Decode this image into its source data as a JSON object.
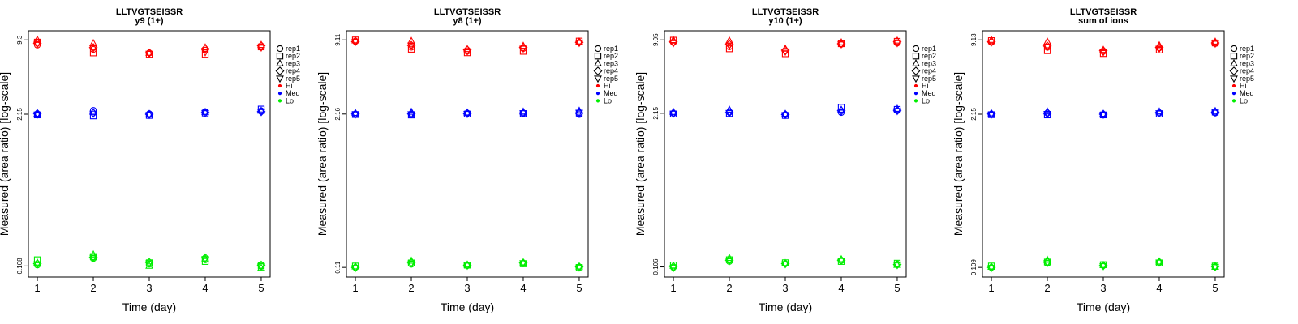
{
  "chart_data": [
    {
      "type": "scatter",
      "title": "LLTVGTSEISSR",
      "subtitle": "y9 (1+)",
      "xlabel": "Time (day)",
      "ylabel": "Measured (area ratio) [log-scale]",
      "y_scale": "log",
      "x_ticks": [
        "1",
        "2",
        "3",
        "4",
        "5"
      ],
      "y_tick_labels": [
        "0.108",
        "2.15",
        "9.3"
      ],
      "grid": false,
      "legend_position": "right",
      "legend": [
        "rep1",
        "rep2",
        "rep3",
        "rep4",
        "rep5",
        "Hi",
        "Med",
        "Lo"
      ],
      "series": [
        {
          "name": "Hi",
          "color": "#ff0000",
          "x": [
            1,
            2,
            3,
            4,
            5
          ],
          "rep1": [
            8.4,
            7.7,
            7.2,
            7.6,
            8.1
          ],
          "rep2": [
            8.9,
            7.2,
            7.0,
            7.0,
            8.1
          ],
          "rep3": [
            9.3,
            8.7,
            7.2,
            8.0,
            8.4
          ],
          "rep4": [
            8.7,
            8.0,
            7.2,
            7.8,
            8.3
          ],
          "rep5": [
            8.6,
            7.9,
            7.1,
            7.3,
            8.0
          ]
        },
        {
          "name": "Med",
          "color": "#0000ff",
          "x": [
            1,
            2,
            3,
            4,
            5
          ],
          "rep1": [
            2.15,
            2.32,
            2.17,
            2.26,
            2.3
          ],
          "rep2": [
            2.12,
            2.08,
            2.1,
            2.2,
            2.38
          ],
          "rep3": [
            2.16,
            2.24,
            2.14,
            2.24,
            2.3
          ],
          "rep4": [
            2.18,
            2.2,
            2.15,
            2.22,
            2.26
          ],
          "rep5": [
            2.14,
            2.18,
            2.12,
            2.2,
            2.25
          ]
        },
        {
          "name": "Lo",
          "color": "#00ee00",
          "x": [
            1,
            2,
            3,
            4,
            5
          ],
          "rep1": [
            0.11,
            0.125,
            0.112,
            0.122,
            0.107
          ],
          "rep2": [
            0.122,
            0.13,
            0.115,
            0.118,
            0.109
          ],
          "rep3": [
            0.115,
            0.135,
            0.108,
            0.125,
            0.104
          ],
          "rep4": [
            0.113,
            0.128,
            0.116,
            0.127,
            0.11
          ],
          "rep5": [
            0.112,
            0.127,
            0.114,
            0.124,
            0.108
          ]
        }
      ]
    },
    {
      "type": "scatter",
      "title": "LLTVGTSEISSR",
      "subtitle": "y8 (1+)",
      "xlabel": "Time (day)",
      "ylabel": "Measured (area ratio) [log-scale]",
      "y_scale": "log",
      "x_ticks": [
        "1",
        "2",
        "3",
        "4",
        "5"
      ],
      "y_tick_labels": [
        "0.11",
        "2.16",
        "9.11"
      ],
      "grid": false,
      "legend_position": "right",
      "legend": [
        "rep1",
        "rep2",
        "rep3",
        "rep4",
        "rep5",
        "Hi",
        "Med",
        "Lo"
      ],
      "series": [
        {
          "name": "Hi",
          "color": "#ff0000",
          "x": [
            1,
            2,
            3,
            4,
            5
          ],
          "rep1": [
            8.9,
            7.9,
            7.3,
            7.7,
            8.7
          ],
          "rep2": [
            9.1,
            7.6,
            7.1,
            7.3,
            8.9
          ],
          "rep3": [
            9.0,
            8.9,
            7.6,
            8.1,
            8.8
          ],
          "rep4": [
            8.8,
            8.2,
            7.5,
            7.9,
            8.7
          ],
          "rep5": [
            8.8,
            8.2,
            7.3,
            7.7,
            8.6
          ]
        },
        {
          "name": "Med",
          "color": "#0000ff",
          "x": [
            1,
            2,
            3,
            4,
            5
          ],
          "rep1": [
            2.16,
            2.16,
            2.2,
            2.2,
            2.14
          ],
          "rep2": [
            2.14,
            2.12,
            2.16,
            2.18,
            2.2
          ],
          "rep3": [
            2.2,
            2.25,
            2.22,
            2.26,
            2.3
          ],
          "rep4": [
            2.16,
            2.18,
            2.18,
            2.2,
            2.2
          ],
          "rep5": [
            2.15,
            2.16,
            2.17,
            2.2,
            2.22
          ]
        },
        {
          "name": "Lo",
          "color": "#00ee00",
          "x": [
            1,
            2,
            3,
            4,
            5
          ],
          "rep1": [
            0.11,
            0.117,
            0.114,
            0.119,
            0.111
          ],
          "rep2": [
            0.113,
            0.12,
            0.115,
            0.118,
            0.11
          ],
          "rep3": [
            0.112,
            0.125,
            0.116,
            0.121,
            0.112
          ],
          "rep4": [
            0.11,
            0.121,
            0.115,
            0.12,
            0.111
          ],
          "rep5": [
            0.109,
            0.119,
            0.114,
            0.12,
            0.11
          ]
        }
      ]
    },
    {
      "type": "scatter",
      "title": "LLTVGTSEISSR",
      "subtitle": "y10 (1+)",
      "xlabel": "Time (day)",
      "ylabel": "Measured (area ratio) [log-scale]",
      "y_scale": "log",
      "x_ticks": [
        "1",
        "2",
        "3",
        "4",
        "5"
      ],
      "y_tick_labels": [
        "0.106",
        "2.15",
        "9.05"
      ],
      "grid": false,
      "legend_position": "right",
      "legend": [
        "rep1",
        "rep2",
        "rep3",
        "rep4",
        "rep5",
        "Hi",
        "Med",
        "Lo"
      ],
      "series": [
        {
          "name": "Hi",
          "color": "#ff0000",
          "x": [
            1,
            2,
            3,
            4,
            5
          ],
          "rep1": [
            8.6,
            7.9,
            7.3,
            8.3,
            8.5
          ],
          "rep2": [
            9.0,
            7.6,
            6.9,
            8.4,
            8.8
          ],
          "rep3": [
            9.0,
            8.9,
            7.6,
            8.6,
            8.9
          ],
          "rep4": [
            8.7,
            8.3,
            7.4,
            8.4,
            8.7
          ],
          "rep5": [
            8.5,
            8.1,
            7.2,
            8.3,
            8.5
          ]
        },
        {
          "name": "Med",
          "color": "#0000ff",
          "x": [
            1,
            2,
            3,
            4,
            5
          ],
          "rep1": [
            2.15,
            2.2,
            2.1,
            2.18,
            2.26
          ],
          "rep2": [
            2.12,
            2.14,
            2.06,
            2.42,
            2.32
          ],
          "rep3": [
            2.2,
            2.3,
            2.12,
            2.3,
            2.34
          ],
          "rep4": [
            2.16,
            2.18,
            2.1,
            2.26,
            2.28
          ],
          "rep5": [
            2.14,
            2.17,
            2.08,
            2.22,
            2.25
          ]
        },
        {
          "name": "Lo",
          "color": "#00ee00",
          "x": [
            1,
            2,
            3,
            4,
            5
          ],
          "rep1": [
            0.105,
            0.118,
            0.113,
            0.12,
            0.112
          ],
          "rep2": [
            0.11,
            0.122,
            0.115,
            0.118,
            0.114
          ],
          "rep3": [
            0.108,
            0.126,
            0.114,
            0.123,
            0.11
          ],
          "rep4": [
            0.107,
            0.121,
            0.113,
            0.121,
            0.111
          ],
          "rep5": [
            0.104,
            0.119,
            0.112,
            0.12,
            0.11
          ]
        }
      ]
    },
    {
      "type": "scatter",
      "title": "LLTVGTSEISSR",
      "subtitle": "sum of ions",
      "xlabel": "Time (day)",
      "ylabel": "Measured (area ratio) [log-scale]",
      "y_scale": "log",
      "x_ticks": [
        "1",
        "2",
        "3",
        "4",
        "5"
      ],
      "y_tick_labels": [
        "0.109",
        "2.15",
        "9.13"
      ],
      "grid": false,
      "legend_position": "right",
      "legend": [
        "rep1",
        "rep2",
        "rep3",
        "rep4",
        "rep5",
        "Hi",
        "Med",
        "Lo"
      ],
      "series": [
        {
          "name": "Hi",
          "color": "#ff0000",
          "x": [
            1,
            2,
            3,
            4,
            5
          ],
          "rep1": [
            8.7,
            7.9,
            7.3,
            7.8,
            8.5
          ],
          "rep2": [
            9.0,
            7.4,
            7.0,
            7.5,
            8.6
          ],
          "rep3": [
            9.1,
            8.8,
            7.5,
            8.2,
            8.8
          ],
          "rep4": [
            8.8,
            8.1,
            7.4,
            7.9,
            8.6
          ],
          "rep5": [
            8.7,
            8.0,
            7.2,
            7.7,
            8.5
          ]
        },
        {
          "name": "Med",
          "color": "#0000ff",
          "x": [
            1,
            2,
            3,
            4,
            5
          ],
          "rep1": [
            2.15,
            2.2,
            2.14,
            2.2,
            2.2
          ],
          "rep2": [
            2.13,
            2.12,
            2.12,
            2.16,
            2.24
          ],
          "rep3": [
            2.18,
            2.26,
            2.16,
            2.26,
            2.28
          ],
          "rep4": [
            2.16,
            2.19,
            2.15,
            2.22,
            2.24
          ],
          "rep5": [
            2.14,
            2.17,
            2.13,
            2.2,
            2.22
          ]
        },
        {
          "name": "Lo",
          "color": "#00ee00",
          "x": [
            1,
            2,
            3,
            4,
            5
          ],
          "rep1": [
            0.109,
            0.118,
            0.113,
            0.12,
            0.111
          ],
          "rep2": [
            0.112,
            0.121,
            0.115,
            0.119,
            0.112
          ],
          "rep3": [
            0.11,
            0.126,
            0.114,
            0.122,
            0.11
          ],
          "rep4": [
            0.109,
            0.121,
            0.113,
            0.121,
            0.111
          ],
          "rep5": [
            0.108,
            0.119,
            0.112,
            0.12,
            0.11
          ]
        }
      ]
    }
  ]
}
